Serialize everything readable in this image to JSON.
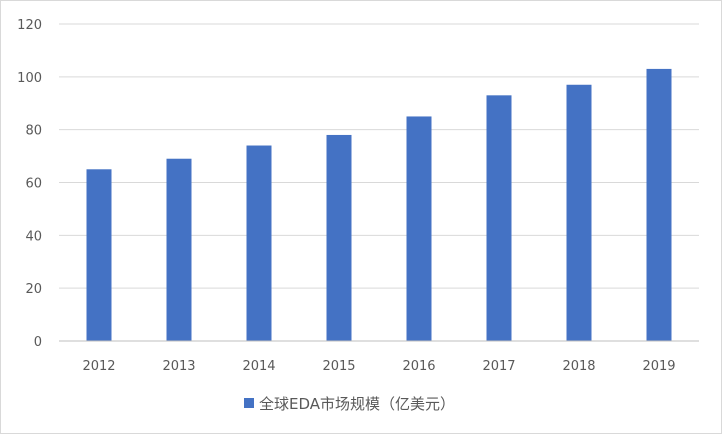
{
  "chart_data": {
    "type": "bar",
    "categories": [
      "2012",
      "2013",
      "2014",
      "2015",
      "2016",
      "2017",
      "2018",
      "2019"
    ],
    "series": [
      {
        "name": "全球EDA市场规模（亿美元）",
        "values": [
          65,
          69,
          74,
          78,
          85,
          93,
          97,
          103
        ],
        "color": "#4472c4"
      }
    ],
    "ylim": [
      0,
      120
    ],
    "yticks": [
      0,
      20,
      40,
      60,
      80,
      100,
      120
    ],
    "grid": true,
    "legend_position": "bottom"
  },
  "colors": {
    "grid": "#d9d9d9",
    "axis": "#bfbfbf",
    "text": "#595959"
  }
}
